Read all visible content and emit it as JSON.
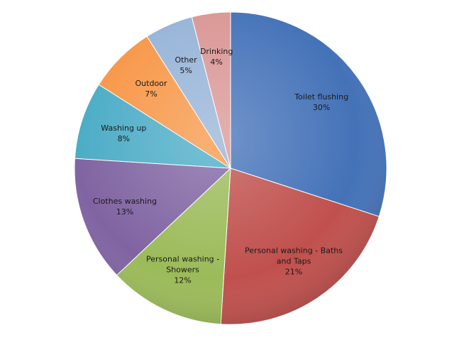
{
  "chart_data": {
    "type": "pie",
    "categories": [
      "Toilet flushing",
      "Personal washing - Baths and Taps",
      "Personal washing - Showers",
      "Clothes washing",
      "Washing up",
      "Outdoor",
      "Other",
      "Drinking"
    ],
    "values": [
      30,
      21,
      12,
      13,
      8,
      7,
      5,
      4
    ],
    "value_labels": [
      "30%",
      "21%",
      "12%",
      "13%",
      "8%",
      "7%",
      "5%",
      "4%"
    ],
    "colors": [
      "#4472b8",
      "#c0504d",
      "#9bbb59",
      "#8064a2",
      "#4bacc6",
      "#f79646",
      "#95b3d7",
      "#d99694"
    ]
  }
}
